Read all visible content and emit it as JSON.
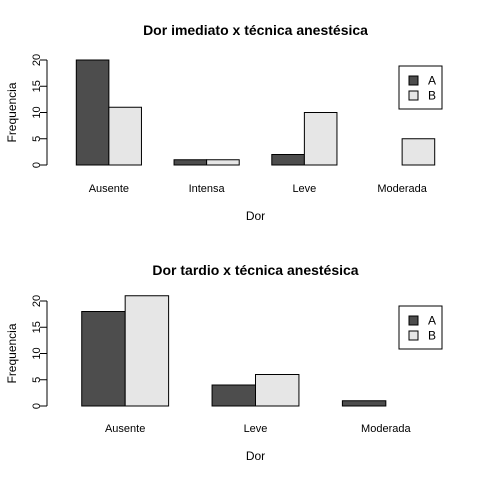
{
  "chart_data": [
    {
      "type": "bar",
      "title": "Dor imediato x técnica anestésica",
      "xlabel": "Dor",
      "ylabel": "Frequencia",
      "categories": [
        "Ausente",
        "Intensa",
        "Leve",
        "Moderada"
      ],
      "series": [
        {
          "name": "A",
          "values": [
            20,
            1,
            2,
            0
          ],
          "color": "#4d4d4d"
        },
        {
          "name": "B",
          "values": [
            11,
            1,
            10,
            5
          ],
          "color": "#e6e6e6"
        }
      ],
      "yticks": [
        0,
        5,
        10,
        15,
        20
      ],
      "ylim": [
        0,
        20
      ],
      "legend": "top-right"
    },
    {
      "type": "bar",
      "title": "Dor tardio x técnica anestésica",
      "xlabel": "Dor",
      "ylabel": "Frequencia",
      "categories": [
        "Ausente",
        "Leve",
        "Moderada"
      ],
      "series": [
        {
          "name": "A",
          "values": [
            18,
            4,
            1
          ],
          "color": "#4d4d4d"
        },
        {
          "name": "B",
          "values": [
            21,
            6,
            0
          ],
          "color": "#e6e6e6"
        }
      ],
      "yticks": [
        0,
        5,
        10,
        15,
        20
      ],
      "ylim": [
        0,
        21
      ],
      "legend": "top-right"
    }
  ]
}
